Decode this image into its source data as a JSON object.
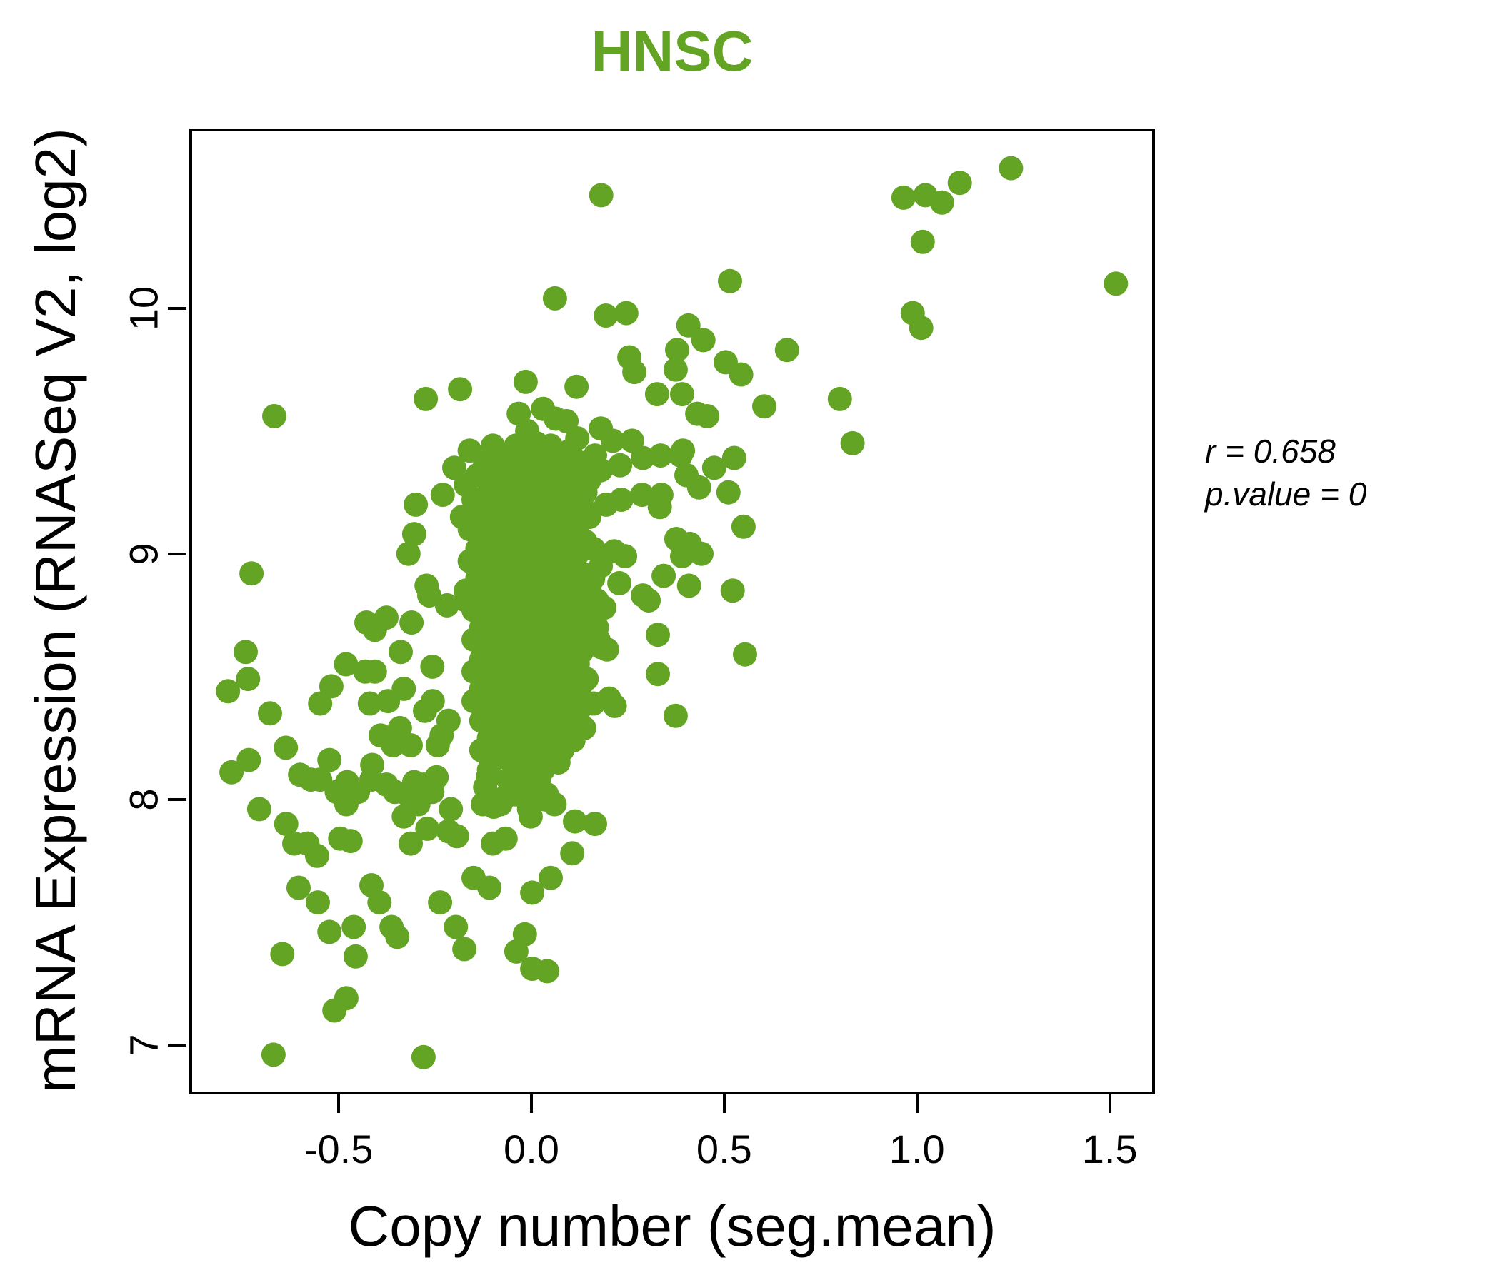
{
  "title": {
    "text": "HNSC",
    "color": "#63a424"
  },
  "annotation": {
    "line1": "r = 0.658",
    "line2": "p.value = 0"
  },
  "chart_data": {
    "type": "scatter",
    "title": "HNSC",
    "xlabel": "Copy number (seg.mean)",
    "ylabel": "mRNA Expression (RNASeq V2, log2)",
    "xlim": [
      -0.88,
      1.61
    ],
    "ylim": [
      6.81,
      10.72
    ],
    "x_ticks": [
      -0.5,
      0.0,
      0.5,
      1.0,
      1.5
    ],
    "x_tick_labels": [
      "-0.5",
      "0.0",
      "0.5",
      "1.0",
      "1.5"
    ],
    "y_ticks": [
      7,
      8,
      9,
      10
    ],
    "y_tick_labels": [
      "7",
      "8",
      "9",
      "10"
    ],
    "grid": false,
    "legend": "none",
    "point_color": "#63a424",
    "point_radius": 17,
    "stats": {
      "r": 0.658,
      "p_value": 0
    },
    "points": [
      [
        -0.667,
        9.56
      ],
      [
        -0.274,
        9.63
      ],
      [
        -0.185,
        9.67
      ],
      [
        0.181,
        10.46
      ],
      [
        0.515,
        10.11
      ],
      [
        0.061,
        10.04
      ],
      [
        0.193,
        9.97
      ],
      [
        0.246,
        9.98
      ],
      [
        0.407,
        9.93
      ],
      [
        0.446,
        9.87
      ],
      [
        0.378,
        9.83
      ],
      [
        0.663,
        9.83
      ],
      [
        0.254,
        9.8
      ],
      [
        0.504,
        9.78
      ],
      [
        0.374,
        9.75
      ],
      [
        0.544,
        9.73
      ],
      [
        0.267,
        9.74
      ],
      [
        -0.015,
        9.7
      ],
      [
        0.117,
        9.68
      ],
      [
        0.326,
        9.65
      ],
      [
        0.391,
        9.65
      ],
      [
        0.03,
        9.59
      ],
      [
        0.063,
        9.55
      ],
      [
        0.091,
        9.54
      ],
      [
        0.119,
        9.47
      ],
      [
        0.18,
        9.51
      ],
      [
        0.211,
        9.46
      ],
      [
        0.261,
        9.46
      ],
      [
        0.43,
        9.57
      ],
      [
        0.456,
        9.56
      ],
      [
        0.604,
        9.6
      ],
      [
        -0.033,
        9.57
      ],
      [
        -0.011,
        9.5
      ],
      [
        0.013,
        9.45
      ],
      [
        0.393,
        9.42
      ],
      [
        1.244,
        10.57
      ],
      [
        1.111,
        10.51
      ],
      [
        0.965,
        10.45
      ],
      [
        1.022,
        10.46
      ],
      [
        1.065,
        10.43
      ],
      [
        1.015,
        10.27
      ],
      [
        1.516,
        10.1
      ],
      [
        0.989,
        9.98
      ],
      [
        1.011,
        9.92
      ],
      [
        0.8,
        9.63
      ],
      [
        0.833,
        9.45
      ],
      [
        -0.726,
        8.92
      ],
      [
        -0.3,
        9.2
      ],
      [
        -0.23,
        9.24
      ],
      [
        -0.304,
        9.08
      ],
      [
        -0.319,
        9.0
      ],
      [
        -0.272,
        8.87
      ],
      [
        -0.265,
        8.83
      ],
      [
        -0.17,
        8.81
      ],
      [
        -0.219,
        8.79
      ],
      [
        -0.428,
        8.72
      ],
      [
        -0.406,
        8.69
      ],
      [
        -0.376,
        8.74
      ],
      [
        -0.311,
        8.72
      ],
      [
        -0.741,
        8.6
      ],
      [
        -0.339,
        8.6
      ],
      [
        -0.481,
        8.55
      ],
      [
        -0.431,
        8.52
      ],
      [
        -0.406,
        8.52
      ],
      [
        -0.519,
        8.46
      ],
      [
        -0.735,
        8.49
      ],
      [
        -0.787,
        8.44
      ],
      [
        -0.548,
        8.39
      ],
      [
        -0.419,
        8.39
      ],
      [
        -0.372,
        8.4
      ],
      [
        -0.331,
        8.45
      ],
      [
        -0.257,
        8.54
      ],
      [
        -0.256,
        8.4
      ],
      [
        -0.276,
        8.36
      ],
      [
        -0.215,
        8.32
      ],
      [
        -0.678,
        8.35
      ],
      [
        -0.341,
        8.29
      ],
      [
        -0.391,
        8.26
      ],
      [
        -0.359,
        8.22
      ],
      [
        -0.313,
        8.22
      ],
      [
        -0.233,
        8.26
      ],
      [
        -0.243,
        8.22
      ],
      [
        -0.637,
        8.21
      ],
      [
        -0.733,
        8.16
      ],
      [
        -0.524,
        8.16
      ],
      [
        -0.778,
        8.11
      ],
      [
        -0.413,
        8.14
      ],
      [
        0.165,
        9.4
      ],
      [
        0.289,
        9.39
      ],
      [
        0.335,
        9.4
      ],
      [
        0.387,
        9.4
      ],
      [
        0.526,
        9.39
      ],
      [
        0.402,
        9.32
      ],
      [
        0.474,
        9.35
      ],
      [
        0.435,
        9.27
      ],
      [
        0.511,
        9.25
      ],
      [
        0.18,
        9.34
      ],
      [
        0.23,
        9.36
      ],
      [
        0.287,
        9.24
      ],
      [
        0.337,
        9.24
      ],
      [
        0.333,
        9.19
      ],
      [
        0.194,
        9.2
      ],
      [
        0.233,
        9.22
      ],
      [
        0.55,
        9.11
      ],
      [
        0.376,
        9.06
      ],
      [
        0.411,
        9.04
      ],
      [
        0.441,
        9.0
      ],
      [
        0.391,
        8.99
      ],
      [
        0.343,
        8.91
      ],
      [
        0.409,
        8.87
      ],
      [
        0.522,
        8.85
      ],
      [
        0.289,
        8.83
      ],
      [
        0.304,
        8.81
      ],
      [
        0.228,
        8.88
      ],
      [
        0.17,
        8.81
      ],
      [
        0.189,
        8.78
      ],
      [
        0.161,
        9.02
      ],
      [
        0.215,
        9.01
      ],
      [
        0.243,
        8.99
      ],
      [
        0.328,
        8.67
      ],
      [
        0.174,
        8.65
      ],
      [
        0.196,
        8.61
      ],
      [
        0.554,
        8.59
      ],
      [
        0.328,
        8.51
      ],
      [
        0.143,
        8.49
      ],
      [
        0.106,
        8.68
      ],
      [
        0.094,
        8.45
      ],
      [
        0.161,
        8.39
      ],
      [
        0.202,
        8.41
      ],
      [
        0.216,
        8.38
      ],
      [
        0.137,
        8.29
      ],
      [
        0.109,
        8.24
      ],
      [
        0.374,
        8.34
      ],
      [
        -0.706,
        7.96
      ],
      [
        -0.636,
        7.9
      ],
      [
        -0.615,
        7.82
      ],
      [
        -0.581,
        7.82
      ],
      [
        -0.556,
        7.77
      ],
      [
        -0.6,
        8.1
      ],
      [
        -0.572,
        8.08
      ],
      [
        -0.548,
        8.08
      ],
      [
        -0.505,
        8.03
      ],
      [
        -0.478,
        8.07
      ],
      [
        -0.45,
        8.03
      ],
      [
        -0.48,
        7.98
      ],
      [
        -0.496,
        7.84
      ],
      [
        -0.469,
        7.83
      ],
      [
        -0.415,
        8.08
      ],
      [
        -0.376,
        8.06
      ],
      [
        -0.354,
        8.03
      ],
      [
        -0.322,
        8.02
      ],
      [
        -0.304,
        8.07
      ],
      [
        -0.28,
        8.06
      ],
      [
        -0.257,
        8.03
      ],
      [
        -0.293,
        7.98
      ],
      [
        -0.246,
        8.09
      ],
      [
        -0.209,
        7.96
      ],
      [
        -0.331,
        7.93
      ],
      [
        -0.313,
        7.82
      ],
      [
        -0.27,
        7.88
      ],
      [
        -0.215,
        7.87
      ],
      [
        -0.193,
        7.85
      ],
      [
        -0.113,
        8.09
      ],
      [
        -0.098,
        7.97
      ],
      [
        -0.067,
        8.01
      ],
      [
        -0.126,
        7.98
      ],
      [
        -0.1,
        7.82
      ],
      [
        -0.067,
        7.84
      ],
      [
        -0.15,
        7.68
      ],
      [
        -0.109,
        7.64
      ],
      [
        -0.237,
        7.58
      ],
      [
        -0.415,
        7.65
      ],
      [
        -0.394,
        7.58
      ],
      [
        -0.554,
        7.58
      ],
      [
        -0.604,
        7.64
      ],
      [
        -0.524,
        7.46
      ],
      [
        -0.461,
        7.48
      ],
      [
        -0.363,
        7.48
      ],
      [
        -0.348,
        7.44
      ],
      [
        -0.196,
        7.48
      ],
      [
        -0.174,
        7.39
      ],
      [
        -0.646,
        7.37
      ],
      [
        -0.456,
        7.36
      ],
      [
        -0.48,
        7.19
      ],
      [
        -0.511,
        7.14
      ],
      [
        -0.669,
        6.96
      ],
      [
        -0.28,
        6.95
      ],
      [
        -0.011,
        8.07
      ],
      [
        0.035,
        8.0
      ],
      [
        -0.006,
        7.96
      ],
      [
        -0.002,
        7.93
      ],
      [
        0.113,
        7.91
      ],
      [
        0.165,
        7.9
      ],
      [
        0.106,
        7.78
      ],
      [
        0.05,
        7.68
      ],
      [
        0.002,
        7.62
      ],
      [
        -0.017,
        7.45
      ],
      [
        -0.039,
        7.38
      ],
      [
        0.002,
        7.31
      ],
      [
        0.041,
        7.3
      ],
      [
        -0.1,
        9.44
      ],
      [
        -0.04,
        9.44
      ],
      [
        0.05,
        9.44
      ],
      [
        -0.16,
        9.42
      ],
      [
        0.02,
        9.42
      ],
      [
        0.1,
        9.42
      ],
      [
        -0.06,
        9.4
      ],
      [
        0.01,
        9.4
      ],
      [
        -0.12,
        9.37
      ],
      [
        -0.02,
        9.37
      ],
      [
        0.05,
        9.37
      ],
      [
        0.13,
        9.37
      ],
      [
        -0.2,
        9.35
      ],
      [
        -0.08,
        9.35
      ],
      [
        0.02,
        9.35
      ],
      [
        0.1,
        9.35
      ],
      [
        -0.14,
        9.32
      ],
      [
        -0.04,
        9.32
      ],
      [
        0.04,
        9.32
      ],
      [
        0.12,
        9.32
      ],
      [
        -0.09,
        9.3
      ],
      [
        0.0,
        9.3
      ],
      [
        0.07,
        9.3
      ],
      [
        0.15,
        9.3
      ],
      [
        -0.17,
        9.28
      ],
      [
        -0.06,
        9.28
      ],
      [
        0.03,
        9.28
      ],
      [
        0.11,
        9.28
      ],
      [
        -0.11,
        9.25
      ],
      [
        -0.02,
        9.25
      ],
      [
        0.06,
        9.25
      ],
      [
        0.14,
        9.25
      ],
      [
        -0.15,
        9.22
      ],
      [
        -0.05,
        9.22
      ],
      [
        0.02,
        9.22
      ],
      [
        0.09,
        9.22
      ],
      [
        -0.08,
        9.2
      ],
      [
        0.0,
        9.2
      ],
      [
        0.06,
        9.2
      ],
      [
        0.13,
        9.2
      ],
      [
        -0.13,
        9.17
      ],
      [
        -0.03,
        9.17
      ],
      [
        0.04,
        9.17
      ],
      [
        0.1,
        9.17
      ],
      [
        -0.18,
        9.15
      ],
      [
        -0.07,
        9.15
      ],
      [
        0.01,
        9.15
      ],
      [
        0.08,
        9.15
      ],
      [
        0.15,
        9.15
      ],
      [
        -0.1,
        9.12
      ],
      [
        -0.01,
        9.12
      ],
      [
        0.05,
        9.12
      ],
      [
        0.12,
        9.12
      ],
      [
        -0.16,
        9.1
      ],
      [
        -0.06,
        9.1
      ],
      [
        0.02,
        9.1
      ],
      [
        0.09,
        9.1
      ],
      [
        -0.12,
        9.07
      ],
      [
        -0.03,
        9.07
      ],
      [
        0.04,
        9.07
      ],
      [
        0.11,
        9.07
      ],
      [
        -0.08,
        9.05
      ],
      [
        0.0,
        9.05
      ],
      [
        0.07,
        9.05
      ],
      [
        0.14,
        9.05
      ],
      [
        -0.14,
        9.02
      ],
      [
        -0.05,
        9.02
      ],
      [
        0.02,
        9.02
      ],
      [
        0.09,
        9.02
      ],
      [
        -0.1,
        9.0
      ],
      [
        -0.01,
        9.0
      ],
      [
        0.05,
        9.0
      ],
      [
        0.12,
        9.0
      ],
      [
        -0.16,
        8.97
      ],
      [
        -0.07,
        8.97
      ],
      [
        0.01,
        8.97
      ],
      [
        0.08,
        8.97
      ],
      [
        -0.12,
        8.95
      ],
      [
        -0.03,
        8.95
      ],
      [
        0.04,
        8.95
      ],
      [
        0.11,
        8.95
      ],
      [
        0.18,
        8.95
      ],
      [
        -0.08,
        8.92
      ],
      [
        0.0,
        8.92
      ],
      [
        0.06,
        8.92
      ],
      [
        0.13,
        8.92
      ],
      [
        -0.14,
        8.9
      ],
      [
        -0.05,
        8.9
      ],
      [
        0.02,
        8.9
      ],
      [
        0.09,
        8.9
      ],
      [
        0.16,
        8.9
      ],
      [
        -0.1,
        8.87
      ],
      [
        -0.02,
        8.87
      ],
      [
        0.05,
        8.87
      ],
      [
        0.12,
        8.87
      ],
      [
        -0.17,
        8.85
      ],
      [
        -0.07,
        8.85
      ],
      [
        0.01,
        8.85
      ],
      [
        0.08,
        8.85
      ],
      [
        0.15,
        8.85
      ],
      [
        -0.12,
        8.82
      ],
      [
        -0.04,
        8.82
      ],
      [
        0.03,
        8.82
      ],
      [
        0.1,
        8.82
      ],
      [
        -0.08,
        8.8
      ],
      [
        0.0,
        8.8
      ],
      [
        0.06,
        8.8
      ],
      [
        0.13,
        8.8
      ],
      [
        -0.15,
        8.77
      ],
      [
        -0.06,
        8.77
      ],
      [
        0.02,
        8.77
      ],
      [
        0.09,
        8.77
      ],
      [
        0.16,
        8.77
      ],
      [
        -0.11,
        8.75
      ],
      [
        -0.02,
        8.75
      ],
      [
        0.05,
        8.75
      ],
      [
        0.12,
        8.75
      ],
      [
        -0.07,
        8.72
      ],
      [
        0.01,
        8.72
      ],
      [
        0.07,
        8.72
      ],
      [
        0.14,
        8.72
      ],
      [
        -0.13,
        8.7
      ],
      [
        -0.04,
        8.7
      ],
      [
        0.03,
        8.7
      ],
      [
        0.1,
        8.7
      ],
      [
        0.17,
        8.7
      ],
      [
        -0.09,
        8.67
      ],
      [
        -0.01,
        8.67
      ],
      [
        0.05,
        8.67
      ],
      [
        0.12,
        8.67
      ],
      [
        -0.15,
        8.65
      ],
      [
        -0.06,
        8.65
      ],
      [
        0.02,
        8.65
      ],
      [
        0.08,
        8.65
      ],
      [
        -0.11,
        8.62
      ],
      [
        -0.03,
        8.62
      ],
      [
        0.04,
        8.62
      ],
      [
        0.11,
        8.62
      ],
      [
        0.18,
        8.62
      ],
      [
        -0.07,
        8.6
      ],
      [
        0.0,
        8.6
      ],
      [
        0.06,
        8.6
      ],
      [
        0.13,
        8.6
      ],
      [
        -0.13,
        8.57
      ],
      [
        -0.05,
        8.57
      ],
      [
        0.02,
        8.57
      ],
      [
        0.09,
        8.57
      ],
      [
        -0.09,
        8.55
      ],
      [
        -0.01,
        8.55
      ],
      [
        0.05,
        8.55
      ],
      [
        0.12,
        8.55
      ],
      [
        -0.15,
        8.52
      ],
      [
        -0.06,
        8.52
      ],
      [
        0.01,
        8.52
      ],
      [
        0.08,
        8.52
      ],
      [
        -0.11,
        8.5
      ],
      [
        -0.03,
        8.5
      ],
      [
        0.04,
        8.5
      ],
      [
        0.1,
        8.5
      ],
      [
        -0.07,
        8.47
      ],
      [
        0.0,
        8.47
      ],
      [
        0.06,
        8.47
      ],
      [
        0.13,
        8.47
      ],
      [
        -0.13,
        8.45
      ],
      [
        -0.05,
        8.45
      ],
      [
        0.02,
        8.45
      ],
      [
        0.09,
        8.45
      ],
      [
        -0.09,
        8.42
      ],
      [
        -0.01,
        8.42
      ],
      [
        0.05,
        8.42
      ],
      [
        0.11,
        8.42
      ],
      [
        -0.15,
        8.4
      ],
      [
        -0.06,
        8.4
      ],
      [
        0.01,
        8.4
      ],
      [
        0.08,
        8.4
      ],
      [
        -0.11,
        8.37
      ],
      [
        -0.02,
        8.37
      ],
      [
        0.04,
        8.37
      ],
      [
        0.1,
        8.37
      ],
      [
        -0.07,
        8.35
      ],
      [
        0.0,
        8.35
      ],
      [
        0.06,
        8.35
      ],
      [
        0.12,
        8.35
      ],
      [
        -0.13,
        8.32
      ],
      [
        -0.04,
        8.32
      ],
      [
        0.02,
        8.32
      ],
      [
        0.08,
        8.32
      ],
      [
        -0.09,
        8.3
      ],
      [
        -0.01,
        8.3
      ],
      [
        0.05,
        8.3
      ],
      [
        0.11,
        8.3
      ],
      [
        -0.05,
        8.27
      ],
      [
        0.01,
        8.27
      ],
      [
        0.07,
        8.27
      ],
      [
        -0.11,
        8.25
      ],
      [
        -0.03,
        8.25
      ],
      [
        0.03,
        8.25
      ],
      [
        0.09,
        8.25
      ],
      [
        -0.07,
        8.22
      ],
      [
        0.0,
        8.22
      ],
      [
        0.05,
        8.22
      ],
      [
        -0.13,
        8.2
      ],
      [
        -0.04,
        8.2
      ],
      [
        0.02,
        8.2
      ],
      [
        0.08,
        8.2
      ],
      [
        -0.09,
        8.17
      ],
      [
        -0.01,
        8.17
      ],
      [
        0.04,
        8.17
      ],
      [
        -0.05,
        8.15
      ],
      [
        0.01,
        8.15
      ],
      [
        0.07,
        8.15
      ],
      [
        -0.11,
        8.12
      ],
      [
        -0.02,
        8.12
      ],
      [
        0.03,
        8.12
      ],
      [
        -0.06,
        8.08
      ],
      [
        0.02,
        8.08
      ],
      [
        -0.12,
        8.05
      ],
      [
        0.0,
        8.05
      ],
      [
        -0.04,
        8.02
      ],
      [
        0.04,
        8.02
      ],
      [
        -0.08,
        7.98
      ],
      [
        0.06,
        7.98
      ]
    ]
  }
}
